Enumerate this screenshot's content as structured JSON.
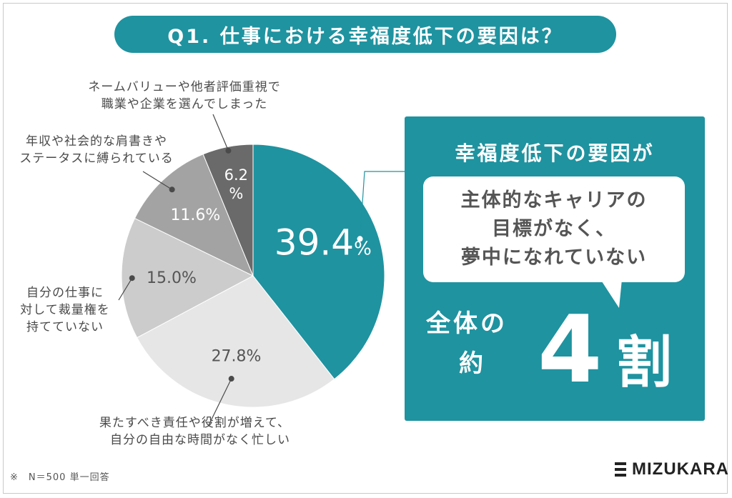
{
  "title": "Q1. 仕事における幸福度低下の要因は？",
  "chart_data": {
    "type": "pie",
    "slices": [
      {
        "label_lines": [],
        "value": 39.4,
        "value_text": "39.4",
        "unit": "%",
        "color": "#1f93a0"
      },
      {
        "label_lines": [
          "果たすべき責任や役割が増えて、",
          "自分の自由な時間がなく忙しい"
        ],
        "value": 27.8,
        "value_text": "27.8%",
        "color": "#e6e6e6"
      },
      {
        "label_lines": [
          "自分の仕事に",
          "対して裁量権を",
          "持てていない"
        ],
        "value": 15.0,
        "value_text": "15.0%",
        "color": "#cccccc"
      },
      {
        "label_lines": [
          "年収や社会的な肩書きや",
          "ステータスに縛られている"
        ],
        "value": 11.6,
        "value_text": "11.6%",
        "color": "#a3a3a3"
      },
      {
        "label_lines": [
          "ネームバリューや他者評価重視で",
          "職業や企業を選んでしまった"
        ],
        "value": 6.2,
        "value_text": "6.2%",
        "color": "#6a6a6a"
      }
    ]
  },
  "callout": {
    "heading": "幸福度低下の要因が",
    "bubble_lines": [
      "主体的なキャリアの",
      "目標がなく、",
      "夢中になれていない"
    ],
    "whole_line1": "全体の",
    "whole_line2": "約",
    "big_number": "4",
    "big_unit": "割"
  },
  "footnote": "※　N＝500 単一回答",
  "logo": "MIZUKARA",
  "colors": {
    "accent": "#1f93a0",
    "text": "#4a4a4a"
  }
}
